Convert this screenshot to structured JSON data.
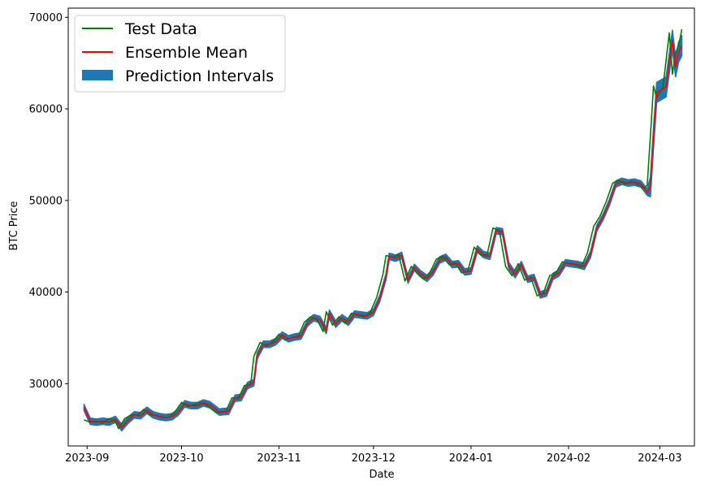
{
  "chart_data": {
    "type": "line",
    "xlabel": "Date",
    "ylabel": "BTC Price",
    "xlim": [
      "2023-08-26",
      "2024-03-12"
    ],
    "ylim": [
      23200,
      71000
    ],
    "x_ticks": [
      "2023-09-01",
      "2023-10-01",
      "2023-11-01",
      "2023-12-01",
      "2024-01-01",
      "2024-02-01",
      "2024-03-01"
    ],
    "x_tick_labels": [
      "2023-09",
      "2023-10",
      "2023-11",
      "2023-12",
      "2024-01",
      "2024-02",
      "2024-03"
    ],
    "y_ticks": [
      30000,
      40000,
      50000,
      60000,
      70000
    ],
    "y_tick_labels": [
      "30000",
      "40000",
      "50000",
      "60000",
      "70000"
    ],
    "grid": false,
    "legend_position": "top-left",
    "series": [
      {
        "name": "Test Data",
        "role": "line",
        "color": "#008000",
        "points": [
          [
            "2023-08-31",
            26050
          ],
          [
            "2023-09-02",
            25800
          ],
          [
            "2023-09-04",
            25900
          ],
          [
            "2023-09-06",
            25700
          ],
          [
            "2023-09-08",
            26200
          ],
          [
            "2023-09-10",
            25850
          ],
          [
            "2023-09-11",
            25100
          ],
          [
            "2023-09-13",
            26200
          ],
          [
            "2023-09-15",
            26600
          ],
          [
            "2023-09-17",
            26550
          ],
          [
            "2023-09-19",
            27200
          ],
          [
            "2023-09-21",
            26600
          ],
          [
            "2023-09-23",
            26550
          ],
          [
            "2023-09-25",
            26300
          ],
          [
            "2023-09-27",
            26350
          ],
          [
            "2023-09-29",
            26950
          ],
          [
            "2023-10-01",
            27950
          ],
          [
            "2023-10-03",
            27500
          ],
          [
            "2023-10-05",
            27700
          ],
          [
            "2023-10-07",
            27950
          ],
          [
            "2023-10-09",
            27650
          ],
          [
            "2023-10-12",
            26850
          ],
          [
            "2023-10-15",
            26900
          ],
          [
            "2023-10-17",
            28450
          ],
          [
            "2023-10-19",
            28350
          ],
          [
            "2023-10-21",
            29800
          ],
          [
            "2023-10-23",
            29900
          ],
          [
            "2023-10-24",
            33000
          ],
          [
            "2023-10-26",
            34500
          ],
          [
            "2023-10-28",
            34100
          ],
          [
            "2023-10-30",
            34600
          ],
          [
            "2023-11-01",
            35400
          ],
          [
            "2023-11-03",
            34800
          ],
          [
            "2023-11-05",
            35000
          ],
          [
            "2023-11-07",
            35100
          ],
          [
            "2023-11-09",
            36700
          ],
          [
            "2023-11-11",
            37300
          ],
          [
            "2023-11-13",
            37000
          ],
          [
            "2023-11-15",
            35700
          ],
          [
            "2023-11-16",
            37850
          ],
          [
            "2023-11-18",
            36400
          ],
          [
            "2023-11-20",
            37300
          ],
          [
            "2023-11-22",
            36600
          ],
          [
            "2023-11-24",
            37700
          ],
          [
            "2023-11-26",
            37500
          ],
          [
            "2023-11-28",
            37300
          ],
          [
            "2023-11-30",
            37800
          ],
          [
            "2023-12-02",
            39400
          ],
          [
            "2023-12-04",
            41900
          ],
          [
            "2023-12-05",
            44000
          ],
          [
            "2023-12-07",
            43800
          ],
          [
            "2023-12-09",
            44100
          ],
          [
            "2023-12-11",
            41200
          ],
          [
            "2023-12-13",
            42800
          ],
          [
            "2023-12-15",
            42000
          ],
          [
            "2023-12-17",
            41400
          ],
          [
            "2023-12-19",
            42200
          ],
          [
            "2023-12-21",
            43600
          ],
          [
            "2023-12-23",
            43900
          ],
          [
            "2023-12-25",
            43000
          ],
          [
            "2023-12-27",
            43200
          ],
          [
            "2023-12-29",
            42100
          ],
          [
            "2023-12-31",
            42300
          ],
          [
            "2024-01-02",
            44900
          ],
          [
            "2024-01-04",
            44100
          ],
          [
            "2024-01-06",
            43900
          ],
          [
            "2024-01-08",
            47000
          ],
          [
            "2024-01-10",
            46700
          ],
          [
            "2024-01-12",
            42800
          ],
          [
            "2024-01-14",
            41800
          ],
          [
            "2024-01-16",
            43100
          ],
          [
            "2024-01-18",
            41300
          ],
          [
            "2024-01-20",
            41600
          ],
          [
            "2024-01-22",
            39600
          ],
          [
            "2024-01-24",
            39900
          ],
          [
            "2024-01-26",
            41800
          ],
          [
            "2024-01-28",
            42100
          ],
          [
            "2024-01-30",
            43300
          ],
          [
            "2024-02-01",
            43100
          ],
          [
            "2024-02-03",
            43000
          ],
          [
            "2024-02-05",
            42700
          ],
          [
            "2024-02-07",
            44300
          ],
          [
            "2024-02-09",
            47200
          ],
          [
            "2024-02-11",
            48300
          ],
          [
            "2024-02-13",
            49900
          ],
          [
            "2024-02-15",
            51900
          ],
          [
            "2024-02-17",
            52200
          ],
          [
            "2024-02-19",
            51800
          ],
          [
            "2024-02-21",
            52100
          ],
          [
            "2024-02-23",
            51700
          ],
          [
            "2024-02-25",
            51300
          ],
          [
            "2024-02-26",
            51700
          ],
          [
            "2024-02-27",
            57100
          ],
          [
            "2024-02-28",
            62500
          ],
          [
            "2024-02-29",
            61200
          ],
          [
            "2024-03-02",
            62400
          ],
          [
            "2024-03-04",
            68300
          ],
          [
            "2024-03-05",
            63800
          ],
          [
            "2024-03-06",
            66100
          ],
          [
            "2024-03-07",
            66900
          ],
          [
            "2024-03-08",
            68700
          ]
        ]
      },
      {
        "name": "Ensemble Mean",
        "role": "line",
        "color": "#ff0000",
        "points": [
          [
            "2023-08-31",
            27400
          ],
          [
            "2023-09-02",
            25900
          ],
          [
            "2023-09-04",
            25800
          ],
          [
            "2023-09-06",
            25900
          ],
          [
            "2023-09-08",
            25800
          ],
          [
            "2023-09-10",
            26100
          ],
          [
            "2023-09-12",
            25200
          ],
          [
            "2023-09-14",
            26000
          ],
          [
            "2023-09-16",
            26600
          ],
          [
            "2023-09-18",
            26500
          ],
          [
            "2023-09-20",
            27100
          ],
          [
            "2023-09-22",
            26600
          ],
          [
            "2023-09-24",
            26400
          ],
          [
            "2023-09-26",
            26300
          ],
          [
            "2023-09-28",
            26400
          ],
          [
            "2023-09-30",
            26900
          ],
          [
            "2023-10-02",
            27800
          ],
          [
            "2023-10-04",
            27600
          ],
          [
            "2023-10-06",
            27600
          ],
          [
            "2023-10-08",
            27900
          ],
          [
            "2023-10-10",
            27700
          ],
          [
            "2023-10-13",
            26900
          ],
          [
            "2023-10-16",
            27000
          ],
          [
            "2023-10-18",
            28400
          ],
          [
            "2023-10-20",
            28500
          ],
          [
            "2023-10-22",
            29800
          ],
          [
            "2023-10-24",
            30100
          ],
          [
            "2023-10-25",
            33000
          ],
          [
            "2023-10-27",
            34300
          ],
          [
            "2023-10-29",
            34300
          ],
          [
            "2023-10-31",
            34600
          ],
          [
            "2023-11-02",
            35300
          ],
          [
            "2023-11-04",
            34900
          ],
          [
            "2023-11-06",
            35100
          ],
          [
            "2023-11-08",
            35200
          ],
          [
            "2023-11-10",
            36600
          ],
          [
            "2023-11-12",
            37200
          ],
          [
            "2023-11-14",
            37000
          ],
          [
            "2023-11-16",
            35800
          ],
          [
            "2023-11-17",
            37700
          ],
          [
            "2023-11-19",
            36500
          ],
          [
            "2023-11-21",
            37200
          ],
          [
            "2023-11-23",
            36700
          ],
          [
            "2023-11-25",
            37600
          ],
          [
            "2023-11-27",
            37500
          ],
          [
            "2023-11-29",
            37400
          ],
          [
            "2023-12-01",
            37800
          ],
          [
            "2023-12-03",
            39300
          ],
          [
            "2023-12-05",
            41700
          ],
          [
            "2023-12-06",
            43900
          ],
          [
            "2023-12-08",
            43700
          ],
          [
            "2023-12-10",
            44000
          ],
          [
            "2023-12-12",
            41300
          ],
          [
            "2023-12-14",
            42700
          ],
          [
            "2023-12-16",
            42000
          ],
          [
            "2023-12-18",
            41500
          ],
          [
            "2023-12-20",
            42200
          ],
          [
            "2023-12-22",
            43500
          ],
          [
            "2023-12-24",
            43800
          ],
          [
            "2023-12-26",
            43000
          ],
          [
            "2023-12-28",
            43100
          ],
          [
            "2023-12-30",
            42200
          ],
          [
            "2024-01-01",
            42300
          ],
          [
            "2024-01-03",
            44700
          ],
          [
            "2024-01-05",
            44100
          ],
          [
            "2024-01-07",
            43900
          ],
          [
            "2024-01-09",
            46700
          ],
          [
            "2024-01-11",
            46600
          ],
          [
            "2024-01-13",
            42900
          ],
          [
            "2024-01-15",
            41900
          ],
          [
            "2024-01-17",
            43000
          ],
          [
            "2024-01-19",
            41400
          ],
          [
            "2024-01-21",
            41600
          ],
          [
            "2024-01-23",
            39700
          ],
          [
            "2024-01-25",
            39900
          ],
          [
            "2024-01-27",
            41700
          ],
          [
            "2024-01-29",
            42100
          ],
          [
            "2024-01-31",
            43200
          ],
          [
            "2024-02-02",
            43100
          ],
          [
            "2024-02-04",
            43000
          ],
          [
            "2024-02-06",
            42800
          ],
          [
            "2024-02-08",
            44100
          ],
          [
            "2024-02-10",
            47000
          ],
          [
            "2024-02-12",
            48200
          ],
          [
            "2024-02-14",
            49800
          ],
          [
            "2024-02-16",
            51800
          ],
          [
            "2024-02-18",
            52100
          ],
          [
            "2024-02-20",
            51900
          ],
          [
            "2024-02-22",
            52000
          ],
          [
            "2024-02-24",
            51800
          ],
          [
            "2024-02-26",
            50900
          ],
          [
            "2024-02-27",
            51500
          ],
          [
            "2024-02-28",
            56800
          ],
          [
            "2024-02-29",
            61800
          ],
          [
            "2024-03-01",
            62000
          ],
          [
            "2024-03-03",
            62400
          ],
          [
            "2024-03-05",
            67500
          ],
          [
            "2024-03-06",
            64600
          ],
          [
            "2024-03-07",
            66200
          ],
          [
            "2024-03-08",
            66900
          ]
        ]
      },
      {
        "name": "Prediction Intervals",
        "role": "band",
        "color": "#1f77b4",
        "center_series": "Ensemble Mean",
        "half_width": 350,
        "half_width_after": [
          "2024-02-27",
          1100
        ]
      }
    ]
  }
}
